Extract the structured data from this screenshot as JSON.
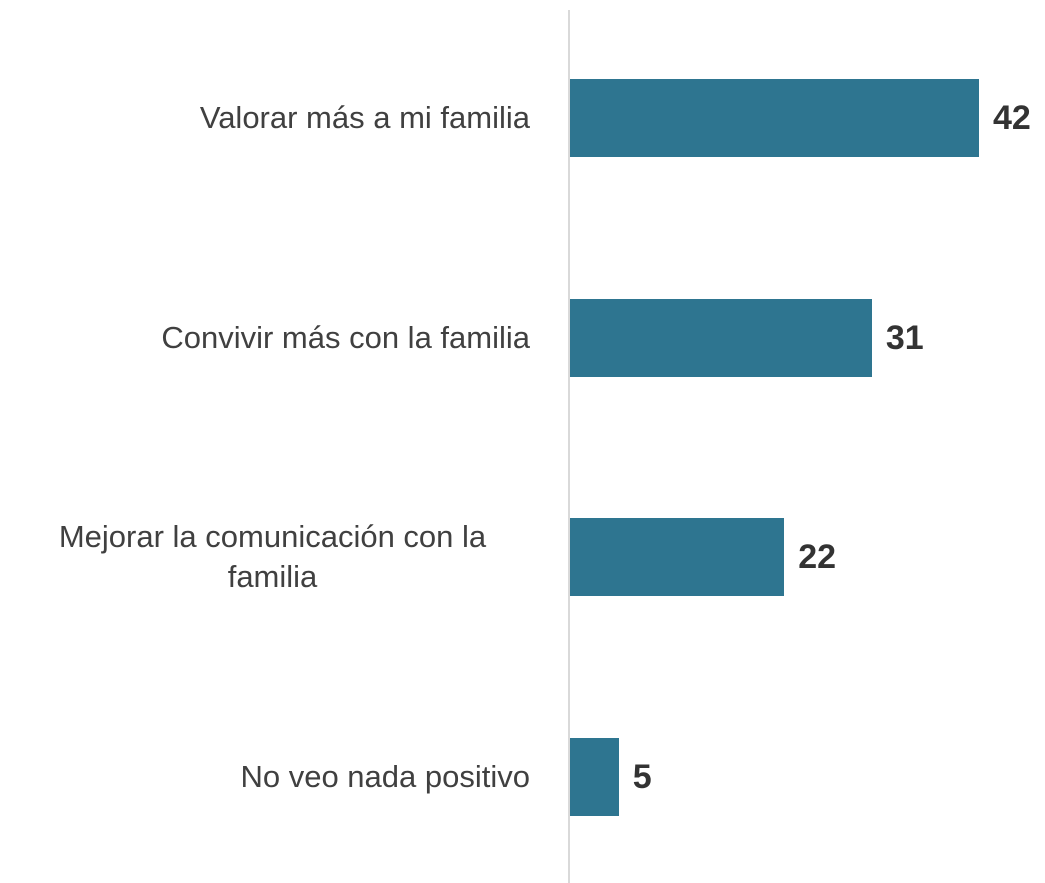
{
  "chart_data": {
    "type": "bar",
    "orientation": "horizontal",
    "categories": [
      "Valorar más a mi familia",
      "Convivir más con la familia",
      "Mejorar la comunicación con la familia",
      "No veo nada positivo"
    ],
    "values": [
      42,
      31,
      22,
      5
    ],
    "color": "#2e7590"
  }
}
